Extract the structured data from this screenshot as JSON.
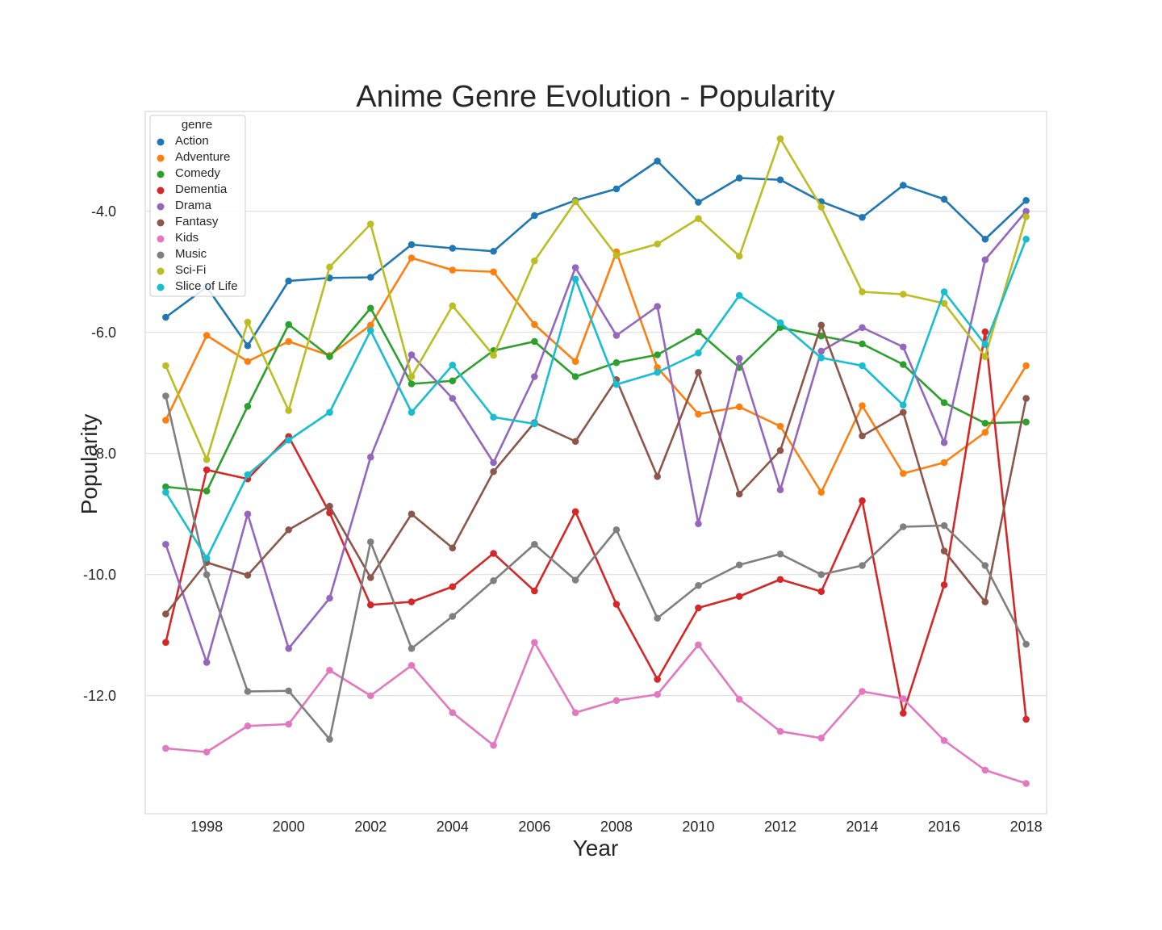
{
  "chart_data": {
    "type": "line",
    "title": "Anime Genre Evolution - Popularity",
    "xlabel": "Year",
    "ylabel": "Popularity",
    "x": [
      1997,
      1998,
      1999,
      2000,
      2001,
      2002,
      2003,
      2004,
      2005,
      2006,
      2007,
      2008,
      2009,
      2010,
      2011,
      2012,
      2013,
      2014,
      2015,
      2016,
      2017,
      2018
    ],
    "xticks": [
      1998,
      2000,
      2002,
      2004,
      2006,
      2008,
      2010,
      2012,
      2014,
      2016,
      2018
    ],
    "xtick_labels": [
      "1998",
      "2000",
      "2002",
      "2004",
      "2006",
      "2008",
      "2010",
      "2012",
      "2014",
      "2016",
      "2018"
    ],
    "yticks": [
      -12,
      -10,
      -8,
      -6,
      -4
    ],
    "ytick_labels": [
      "-12.0",
      "-10.0",
      "-8.0",
      "-6.0",
      "-4.0"
    ],
    "xlim": [
      1996.5,
      2018.5
    ],
    "ylim": [
      -13.95,
      -2.35
    ],
    "grid": "y",
    "legend": {
      "title": "genre",
      "position": "top-left"
    },
    "series": [
      {
        "name": "Action",
        "color": "#1f77b4",
        "values": [
          -5.75,
          -5.25,
          -6.22,
          -5.15,
          -5.1,
          -5.09,
          -4.55,
          -4.61,
          -4.66,
          -4.07,
          -3.82,
          -3.63,
          -3.17,
          -3.85,
          -3.45,
          -3.48,
          -3.84,
          -4.1,
          -3.57,
          -3.8,
          -4.46,
          -3.82
        ]
      },
      {
        "name": "Adventure",
        "color": "#ff7f0e",
        "values": [
          -7.45,
          -6.05,
          -6.48,
          -6.15,
          -6.38,
          -5.88,
          -4.77,
          -4.97,
          -5.0,
          -5.87,
          -6.48,
          -4.67,
          -6.58,
          -7.35,
          -7.23,
          -7.55,
          -8.64,
          -7.21,
          -8.33,
          -8.15,
          -7.65,
          -6.55
        ]
      },
      {
        "name": "Comedy",
        "color": "#2ca02c",
        "values": [
          -8.55,
          -8.62,
          -7.22,
          -5.87,
          -6.4,
          -5.6,
          -6.85,
          -6.8,
          -6.3,
          -6.15,
          -6.73,
          -6.5,
          -6.37,
          -5.99,
          -6.58,
          -5.92,
          -6.06,
          -6.19,
          -6.53,
          -7.16,
          -7.5,
          -7.48
        ]
      },
      {
        "name": "Dementia",
        "color": "#d62728",
        "values": [
          -11.12,
          -8.27,
          -8.42,
          -7.72,
          -8.98,
          -10.5,
          -10.45,
          -10.2,
          -9.65,
          -10.27,
          -8.96,
          -10.49,
          -11.73,
          -10.55,
          -10.36,
          -10.08,
          -10.28,
          -8.78,
          -12.29,
          -10.17,
          -5.99,
          -12.39
        ]
      },
      {
        "name": "Drama",
        "color": "#9467bd",
        "values": [
          -9.5,
          -11.45,
          -9.0,
          -11.22,
          -10.39,
          -8.06,
          -6.37,
          -7.09,
          -8.15,
          -6.73,
          -4.93,
          -6.05,
          -5.57,
          -9.16,
          -6.43,
          -8.6,
          -6.31,
          -5.92,
          -6.24,
          -7.82,
          -4.8,
          -4.0
        ]
      },
      {
        "name": "Fantasy",
        "color": "#8c564b",
        "values": [
          -10.65,
          -9.8,
          -10.01,
          -9.26,
          -8.87,
          -10.05,
          -9.0,
          -9.56,
          -8.3,
          -7.49,
          -7.8,
          -6.78,
          -8.38,
          -6.66,
          -8.67,
          -7.95,
          -5.88,
          -7.71,
          -7.32,
          -9.61,
          -10.45,
          -7.09
        ]
      },
      {
        "name": "Kids",
        "color": "#e377c2",
        "values": [
          -12.87,
          -12.93,
          -12.5,
          -12.47,
          -11.58,
          -12.0,
          -11.5,
          -12.28,
          -12.82,
          -11.12,
          -12.28,
          -12.08,
          -11.98,
          -11.16,
          -12.06,
          -12.59,
          -12.7,
          -11.93,
          -12.05,
          -12.74,
          -13.23,
          -13.45
        ]
      },
      {
        "name": "Music",
        "color": "#7f7f7f",
        "values": [
          -7.05,
          -10.0,
          -11.93,
          -11.92,
          -12.72,
          -9.46,
          -11.22,
          -10.69,
          -10.1,
          -9.5,
          -10.09,
          -9.26,
          -10.72,
          -10.18,
          -9.84,
          -9.66,
          -10.0,
          -9.85,
          -9.21,
          -9.19,
          -9.85,
          -11.15
        ]
      },
      {
        "name": "Sci-Fi",
        "color": "#bcbd22",
        "values": [
          -6.55,
          -8.1,
          -5.83,
          -7.29,
          -4.92,
          -4.21,
          -6.73,
          -5.56,
          -6.38,
          -4.82,
          -3.84,
          -4.73,
          -4.54,
          -4.12,
          -4.74,
          -2.8,
          -3.93,
          -5.33,
          -5.37,
          -5.52,
          -6.4,
          -4.09
        ]
      },
      {
        "name": "Slice of Life",
        "color": "#17becf",
        "values": [
          -8.64,
          -9.73,
          -8.35,
          -7.78,
          -7.32,
          -5.97,
          -7.32,
          -6.54,
          -7.4,
          -7.51,
          -5.12,
          -6.86,
          -6.66,
          -6.34,
          -5.39,
          -5.84,
          -6.42,
          -6.55,
          -7.2,
          -5.33,
          -6.2,
          -4.46
        ]
      }
    ]
  }
}
